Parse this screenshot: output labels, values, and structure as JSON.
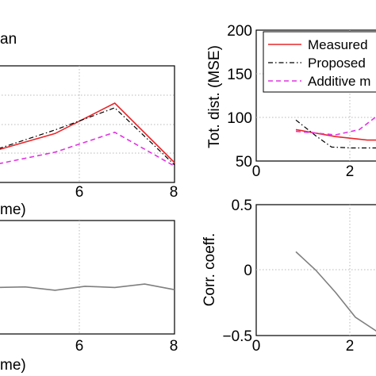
{
  "chart_data": [
    {
      "panel": "top-left",
      "type": "line",
      "title_fragment": "an",
      "xlabel_fragment": "me)",
      "ylabel": "",
      "xlim": [
        2.1,
        8
      ],
      "ylim": [
        0,
        1
      ],
      "x_ticks": [
        6,
        8
      ],
      "grid": true,
      "series": [
        {
          "color": "#e8262b",
          "dash": "solid",
          "points": [
            [
              2.1,
              0.28
            ],
            [
              4,
              0.42
            ],
            [
              6,
              0.68
            ],
            [
              8,
              0.17
            ]
          ]
        },
        {
          "color": "#000000",
          "dash": "dashdot",
          "points": [
            [
              2.1,
              0.29
            ],
            [
              4,
              0.45
            ],
            [
              6,
              0.64
            ],
            [
              8,
              0.15
            ]
          ]
        },
        {
          "color": "#e233e2",
          "dash": "dashed",
          "points": [
            [
              2.1,
              0.16
            ],
            [
              4,
              0.26
            ],
            [
              6,
              0.43
            ],
            [
              8,
              0.14
            ]
          ]
        }
      ]
    },
    {
      "panel": "bottom-left",
      "type": "line",
      "xlabel_fragment": "me)",
      "ylabel": "",
      "xlim": [
        2.1,
        8
      ],
      "ylim": [
        0,
        1
      ],
      "x_ticks": [
        6,
        8
      ],
      "grid": true,
      "series": [
        {
          "color": "#7f7f7f",
          "dash": "solid",
          "points": [
            [
              2.1,
              0.41
            ],
            [
              3,
              0.415
            ],
            [
              4,
              0.385
            ],
            [
              5,
              0.42
            ],
            [
              6,
              0.41
            ],
            [
              7,
              0.44
            ],
            [
              8,
              0.39
            ]
          ]
        }
      ]
    },
    {
      "panel": "top-right",
      "type": "line",
      "ylabel": "Tot. dist. (MSE)",
      "xlim": [
        0,
        3.2
      ],
      "ylim": [
        50,
        200
      ],
      "x_ticks": [
        0,
        2
      ],
      "y_ticks": [
        50,
        100,
        150,
        200
      ],
      "grid": true,
      "legend": {
        "placement": "top-right",
        "entries": [
          "Measured",
          "Proposed",
          "Additive m"
        ]
      },
      "series": [
        {
          "name": "Measured",
          "color": "#e8262b",
          "dash": "solid",
          "points": [
            [
              1,
              86
            ],
            [
              2,
              78
            ],
            [
              2.8,
              74
            ],
            [
              3.2,
              74
            ]
          ]
        },
        {
          "name": "Proposed",
          "color": "#000000",
          "dash": "dashdot",
          "points": [
            [
              1,
              97
            ],
            [
              1.5,
              79
            ],
            [
              1.9,
              66
            ],
            [
              2.4,
              65
            ],
            [
              3.2,
              65
            ]
          ]
        },
        {
          "name": "Additive m",
          "color": "#e233e2",
          "dash": "dashed",
          "points": [
            [
              1,
              84
            ],
            [
              2,
              80
            ],
            [
              2.6,
              86
            ],
            [
              3.0,
              100
            ]
          ]
        }
      ]
    },
    {
      "panel": "bottom-right",
      "type": "line",
      "ylabel": "Corr. coeff.",
      "xlim": [
        0,
        3.2
      ],
      "ylim": [
        -0.5,
        0.5
      ],
      "x_ticks": [
        0,
        2
      ],
      "y_ticks": [
        -0.5,
        0,
        0.5
      ],
      "grid": true,
      "series": [
        {
          "color": "#7f7f7f",
          "dash": "solid",
          "points": [
            [
              1,
              0.14
            ],
            [
              1.5,
              0.0
            ],
            [
              2,
              -0.17
            ],
            [
              2.5,
              -0.36
            ],
            [
              3.2,
              -0.5
            ]
          ]
        }
      ]
    }
  ],
  "text": {
    "tl_title": "an",
    "tl_xlabel": "me)",
    "bl_xlabel": "me)",
    "tr_ylabel": "Tot. dist. (MSE)",
    "br_ylabel": "Corr. coeff.",
    "leg_1": "Measured",
    "leg_2": "Proposed",
    "leg_3": "Additive m",
    "tick_tl_6": "6",
    "tick_tl_8": "8",
    "tick_bl_6": "6",
    "tick_bl_8": "8",
    "tick_tr_x0": "0",
    "tick_tr_x2": "2",
    "tick_tr_50": "50",
    "tick_tr_100": "100",
    "tick_tr_150": "150",
    "tick_tr_200": "200",
    "tick_br_x0": "0",
    "tick_br_x2": "2",
    "tick_br_p05": "0.5",
    "tick_br_0": "0",
    "tick_br_m05": "−0.5"
  }
}
